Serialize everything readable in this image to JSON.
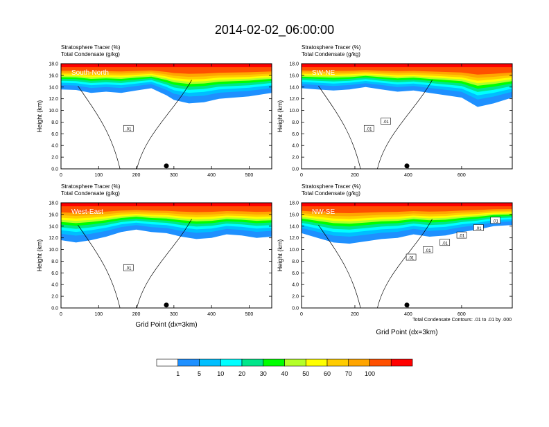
{
  "figure": {
    "title": "2014-02-02_06:00:00",
    "footnote": "Total Condensate Contours: .01 to .01 by .000"
  },
  "chart_data": [
    {
      "type": "heatmap",
      "cross_section": "South-North",
      "header_lines": [
        "Stratosphere Tracer   (%)",
        "Total Condensate   (g/kg)"
      ],
      "ylabel": "Height (km)",
      "xlabel": "",
      "xlim": [
        0,
        560
      ],
      "ylim": [
        0,
        18
      ],
      "x_ticks": [
        0,
        100,
        200,
        300,
        400,
        500
      ],
      "y_ticks": [
        0.0,
        2.0,
        4.0,
        6.0,
        8.0,
        10.0,
        12.0,
        14.0,
        16.0,
        18.0
      ],
      "contour_labels": [
        ".01"
      ],
      "marker_x": 280,
      "tracer_bottom_km": [
        [
          0,
          13.6
        ],
        [
          40,
          13.5
        ],
        [
          80,
          13.0
        ],
        [
          120,
          13.2
        ],
        [
          160,
          13.0
        ],
        [
          200,
          13.4
        ],
        [
          240,
          13.8
        ],
        [
          280,
          12.6
        ],
        [
          300,
          11.8
        ],
        [
          340,
          11.2
        ],
        [
          380,
          11.4
        ],
        [
          420,
          12.0
        ],
        [
          460,
          12.2
        ],
        [
          500,
          12.4
        ],
        [
          540,
          12.8
        ],
        [
          560,
          13.0
        ]
      ]
    },
    {
      "type": "heatmap",
      "cross_section": "SW-NE",
      "header_lines": [
        "Stratosphere Tracer   (%)",
        "Total Condensate   (g/kg)"
      ],
      "ylabel": "Height (km)",
      "xlabel": "",
      "xlim": [
        0,
        790
      ],
      "ylim": [
        0,
        18
      ],
      "x_ticks": [
        0,
        200,
        400,
        600
      ],
      "y_ticks": [
        0.0,
        2.0,
        4.0,
        6.0,
        8.0,
        10.0,
        12.0,
        14.0,
        16.0,
        18.0
      ],
      "contour_labels": [
        ".01",
        ".01"
      ],
      "marker_x": 395,
      "tracer_bottom_km": [
        [
          0,
          13.8
        ],
        [
          60,
          13.6
        ],
        [
          120,
          13.4
        ],
        [
          180,
          13.6
        ],
        [
          240,
          14.0
        ],
        [
          300,
          13.6
        ],
        [
          360,
          13.2
        ],
        [
          420,
          13.4
        ],
        [
          480,
          13.0
        ],
        [
          540,
          12.6
        ],
        [
          600,
          12.2
        ],
        [
          660,
          10.6
        ],
        [
          720,
          11.2
        ],
        [
          790,
          12.2
        ]
      ]
    },
    {
      "type": "heatmap",
      "cross_section": "West-East",
      "header_lines": [
        "Stratosphere Tracer   (%)",
        "Total Condensate   (g/kg)"
      ],
      "ylabel": "Height (km)",
      "xlabel": "Grid Point  (dx=3km)",
      "xlim": [
        0,
        560
      ],
      "ylim": [
        0,
        18
      ],
      "x_ticks": [
        0,
        100,
        200,
        300,
        400,
        500
      ],
      "y_ticks": [
        0.0,
        2.0,
        4.0,
        6.0,
        8.0,
        10.0,
        12.0,
        14.0,
        16.0,
        18.0
      ],
      "contour_labels": [
        ".01"
      ],
      "marker_x": 280,
      "tracer_bottom_km": [
        [
          0,
          11.6
        ],
        [
          40,
          11.2
        ],
        [
          80,
          11.6
        ],
        [
          120,
          12.2
        ],
        [
          160,
          13.0
        ],
        [
          200,
          13.4
        ],
        [
          240,
          13.0
        ],
        [
          280,
          12.8
        ],
        [
          320,
          12.2
        ],
        [
          360,
          11.8
        ],
        [
          400,
          12.0
        ],
        [
          440,
          12.6
        ],
        [
          480,
          12.4
        ],
        [
          520,
          12.0
        ],
        [
          560,
          12.2
        ]
      ]
    },
    {
      "type": "heatmap",
      "cross_section": "NW-SE",
      "header_lines": [
        "Stratosphere Tracer   (%)",
        "Total Condensate   (g/kg)"
      ],
      "ylabel": "Height (km)",
      "xlabel": "Grid Point  (dx=3km)",
      "xlim": [
        0,
        790
      ],
      "ylim": [
        0,
        18
      ],
      "x_ticks": [
        0,
        200,
        400,
        600
      ],
      "y_ticks": [
        0.0,
        2.0,
        4.0,
        6.0,
        8.0,
        10.0,
        12.0,
        14.0,
        16.0,
        18.0
      ],
      "contour_labels": [
        ".01",
        ".01",
        ".01",
        ".01",
        ".01",
        ".01"
      ],
      "marker_x": 395,
      "tracer_bottom_km": [
        [
          0,
          12.8
        ],
        [
          60,
          12.0
        ],
        [
          120,
          11.2
        ],
        [
          180,
          11.0
        ],
        [
          240,
          11.4
        ],
        [
          300,
          11.8
        ],
        [
          360,
          12.0
        ],
        [
          420,
          12.6
        ],
        [
          480,
          12.2
        ],
        [
          540,
          12.4
        ],
        [
          600,
          13.0
        ],
        [
          660,
          13.4
        ],
        [
          720,
          14.0
        ],
        [
          790,
          14.2
        ]
      ]
    }
  ],
  "colorbar": {
    "levels": [
      "1",
      "5",
      "10",
      "20",
      "30",
      "40",
      "50",
      "60",
      "70",
      "100"
    ],
    "colors": [
      "#ffffff",
      "#1e90ff",
      "#00bfff",
      "#00ffff",
      "#00e68a",
      "#00ff00",
      "#b4ff28",
      "#ffff00",
      "#ffcc00",
      "#ffa500",
      "#ff5000",
      "#ff0000"
    ]
  }
}
